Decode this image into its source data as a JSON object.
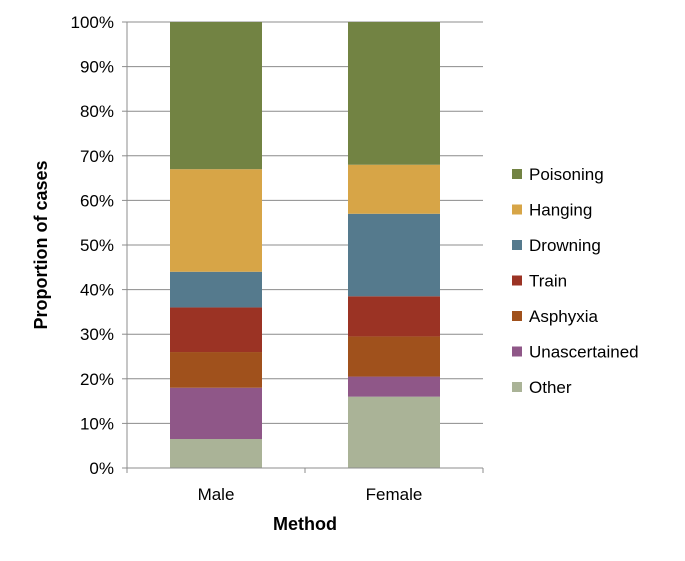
{
  "chart_data": {
    "type": "bar",
    "stacked": true,
    "percent_stacked": true,
    "title": "",
    "xlabel": "Method",
    "ylabel": "Proportion of cases",
    "ylim": [
      0,
      100
    ],
    "y_ticks": [
      "0%",
      "10%",
      "20%",
      "30%",
      "40%",
      "50%",
      "60%",
      "70%",
      "80%",
      "90%",
      "100%"
    ],
    "categories": [
      "Male",
      "Female"
    ],
    "series": [
      {
        "name": "Other",
        "color": "#aab397",
        "values": [
          6.5,
          16
        ]
      },
      {
        "name": "Unascertained",
        "color": "#8f5788",
        "values": [
          11.5,
          4.5
        ]
      },
      {
        "name": "Asphyxia",
        "color": "#a0511c",
        "values": [
          8,
          9
        ]
      },
      {
        "name": "Train",
        "color": "#9b3324",
        "values": [
          10,
          9
        ]
      },
      {
        "name": "Drowning",
        "color": "#557a8d",
        "values": [
          8,
          18.5
        ]
      },
      {
        "name": "Hanging",
        "color": "#d7a547",
        "values": [
          23,
          11
        ]
      },
      {
        "name": "Poisoning",
        "color": "#728343",
        "values": [
          33,
          32
        ]
      }
    ],
    "legend_position": "right",
    "grid": true
  }
}
